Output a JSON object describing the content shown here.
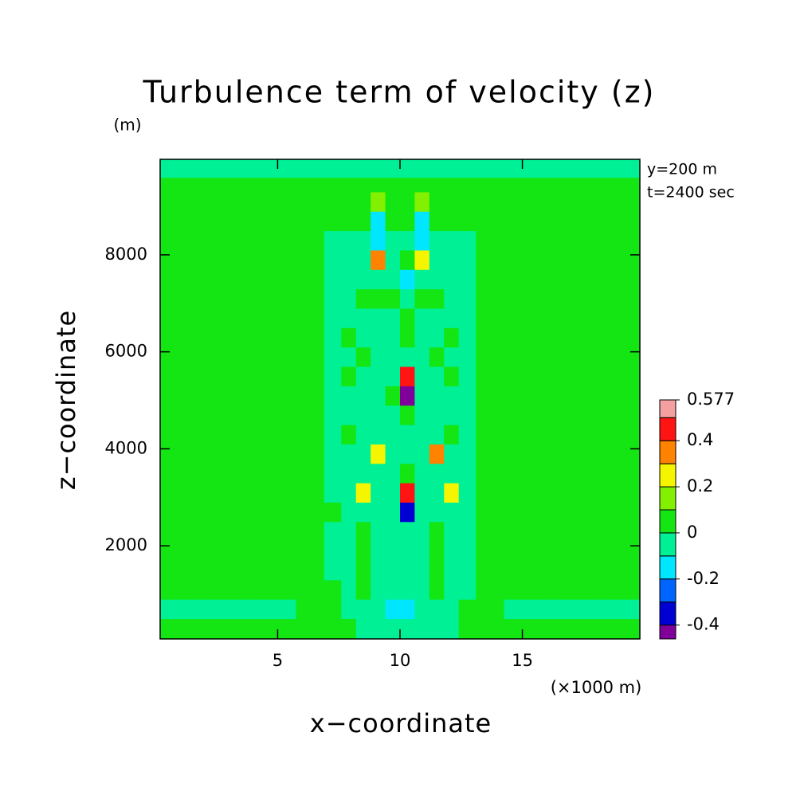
{
  "chart_data": {
    "type": "contour",
    "title": "Turbulence term of velocity (z)",
    "y_unit": "(m)",
    "x_unit": "(×1000 m)",
    "xlabel": "x−coordinate",
    "ylabel": "z−coordinate",
    "annotations": [
      "y=200 m",
      "t=2400 sec"
    ],
    "xlim": [
      0.2,
      19.8
    ],
    "ylim": [
      80,
      9970
    ],
    "xticks": [
      5,
      10,
      15
    ],
    "yticks": [
      2000,
      4000,
      6000,
      8000
    ],
    "x": [
      1,
      3,
      5,
      6.5,
      7.3,
      7.9,
      8.5,
      9.1,
      9.7,
      10.3,
      10.9,
      11.5,
      12.1,
      12.7,
      13.5,
      15,
      17,
      19
    ],
    "z": [
      300,
      700,
      1100,
      1500,
      1900,
      2300,
      2700,
      3100,
      3500,
      3900,
      4300,
      4700,
      5100,
      5500,
      5900,
      6300,
      6700,
      7100,
      7500,
      7900,
      8300,
      8700,
      9100,
      9500,
      9700
    ],
    "values": [
      [
        0.03,
        0.03,
        0.03,
        0.03,
        0.03,
        0.03,
        -0.03,
        -0.03,
        -0.03,
        -0.03,
        -0.03,
        -0.03,
        -0.03,
        0.03,
        0.03,
        0.03,
        0.03,
        0.03
      ],
      [
        -0.03,
        -0.03,
        -0.03,
        0.03,
        0.03,
        -0.03,
        -0.03,
        -0.03,
        -0.12,
        -0.12,
        -0.03,
        -0.03,
        -0.03,
        0.03,
        0.03,
        -0.03,
        -0.03,
        -0.03
      ],
      [
        0.03,
        0.03,
        0.03,
        0.03,
        0.03,
        -0.03,
        0.03,
        -0.03,
        -0.03,
        -0.03,
        -0.03,
        0.03,
        -0.03,
        -0.03,
        0.03,
        0.03,
        0.03,
        0.03
      ],
      [
        0.03,
        0.03,
        0.03,
        0.03,
        -0.03,
        -0.03,
        0.03,
        -0.03,
        -0.03,
        -0.03,
        -0.03,
        0.03,
        -0.03,
        -0.03,
        0.03,
        0.03,
        0.03,
        0.03
      ],
      [
        0.03,
        0.03,
        0.03,
        0.03,
        -0.03,
        -0.03,
        0.03,
        -0.03,
        -0.03,
        -0.03,
        -0.03,
        0.03,
        -0.03,
        -0.03,
        0.03,
        0.03,
        0.03,
        0.03
      ],
      [
        0.03,
        0.03,
        0.03,
        0.03,
        -0.03,
        -0.03,
        0.03,
        -0.03,
        -0.03,
        -0.03,
        -0.03,
        0.03,
        -0.03,
        -0.03,
        0.03,
        0.03,
        0.03,
        0.03
      ],
      [
        0.03,
        0.03,
        0.03,
        0.03,
        0.03,
        -0.03,
        -0.03,
        -0.03,
        -0.03,
        -0.36,
        -0.03,
        -0.03,
        -0.03,
        -0.03,
        0.03,
        0.03,
        0.03,
        0.03
      ],
      [
        0.03,
        0.03,
        0.03,
        0.03,
        -0.03,
        -0.03,
        0.22,
        -0.03,
        -0.03,
        0.47,
        -0.03,
        -0.03,
        0.24,
        -0.03,
        0.03,
        0.03,
        0.03,
        0.03
      ],
      [
        0.03,
        0.03,
        0.03,
        0.03,
        -0.03,
        -0.03,
        -0.03,
        -0.03,
        -0.03,
        0.03,
        -0.03,
        -0.03,
        -0.03,
        -0.03,
        0.03,
        0.03,
        0.03,
        0.03
      ],
      [
        0.03,
        0.03,
        0.03,
        0.03,
        -0.03,
        -0.03,
        -0.03,
        0.23,
        -0.03,
        -0.03,
        -0.03,
        0.33,
        -0.03,
        -0.03,
        0.03,
        0.03,
        0.03,
        0.03
      ],
      [
        0.03,
        0.03,
        0.03,
        0.03,
        -0.03,
        0.03,
        -0.03,
        -0.03,
        -0.03,
        -0.03,
        -0.03,
        -0.03,
        0.03,
        -0.03,
        0.03,
        0.03,
        0.03,
        0.03
      ],
      [
        0.03,
        0.03,
        0.03,
        0.03,
        -0.03,
        -0.03,
        -0.03,
        -0.03,
        -0.03,
        0.03,
        -0.03,
        -0.03,
        -0.03,
        -0.03,
        0.03,
        0.03,
        0.03,
        0.03
      ],
      [
        0.03,
        0.03,
        0.03,
        0.03,
        -0.03,
        -0.03,
        -0.03,
        -0.03,
        0.03,
        -0.42,
        -0.03,
        -0.03,
        -0.03,
        -0.03,
        0.03,
        0.03,
        0.03,
        0.03
      ],
      [
        0.03,
        0.03,
        0.03,
        0.03,
        -0.03,
        0.03,
        -0.03,
        -0.03,
        -0.03,
        0.46,
        -0.03,
        -0.03,
        0.03,
        -0.03,
        0.03,
        0.03,
        0.03,
        0.03
      ],
      [
        0.03,
        0.03,
        0.03,
        0.03,
        -0.03,
        -0.03,
        0.03,
        -0.03,
        -0.03,
        -0.03,
        -0.03,
        0.03,
        -0.03,
        -0.03,
        0.03,
        0.03,
        0.03,
        0.03
      ],
      [
        0.03,
        0.03,
        0.03,
        0.03,
        -0.03,
        0.03,
        -0.03,
        -0.03,
        -0.03,
        0.03,
        -0.03,
        -0.03,
        0.03,
        -0.03,
        0.03,
        0.03,
        0.03,
        0.03
      ],
      [
        0.03,
        0.03,
        0.03,
        0.03,
        -0.03,
        -0.03,
        -0.03,
        -0.03,
        -0.03,
        0.03,
        -0.03,
        -0.03,
        -0.03,
        -0.03,
        0.03,
        0.03,
        0.03,
        0.03
      ],
      [
        0.03,
        0.03,
        0.03,
        0.03,
        -0.03,
        -0.03,
        0.03,
        0.03,
        0.03,
        -0.03,
        0.03,
        0.03,
        -0.03,
        -0.03,
        0.03,
        0.03,
        0.03,
        0.03
      ],
      [
        0.03,
        0.03,
        0.03,
        0.03,
        -0.03,
        -0.03,
        -0.03,
        -0.03,
        -0.03,
        -0.12,
        -0.03,
        -0.03,
        -0.03,
        -0.03,
        0.03,
        0.03,
        0.03,
        0.03
      ],
      [
        0.03,
        0.03,
        0.03,
        0.03,
        -0.03,
        -0.03,
        -0.03,
        0.35,
        -0.03,
        0.03,
        0.25,
        -0.03,
        -0.03,
        -0.03,
        0.03,
        0.03,
        0.03,
        0.03
      ],
      [
        0.03,
        0.03,
        0.03,
        0.03,
        -0.03,
        -0.03,
        -0.03,
        -0.13,
        -0.03,
        -0.03,
        -0.13,
        -0.03,
        -0.03,
        -0.03,
        0.03,
        0.03,
        0.03,
        0.03
      ],
      [
        0.03,
        0.03,
        0.03,
        0.03,
        0.03,
        0.03,
        0.03,
        -0.15,
        0.03,
        0.03,
        -0.15,
        0.03,
        0.03,
        0.03,
        0.03,
        0.03,
        0.03,
        0.03
      ],
      [
        0.03,
        0.03,
        0.03,
        0.03,
        0.03,
        0.03,
        0.03,
        0.12,
        0.03,
        0.03,
        0.12,
        0.03,
        0.03,
        0.03,
        0.03,
        0.03,
        0.03,
        0.03
      ],
      [
        0.03,
        0.03,
        0.03,
        0.03,
        0.03,
        0.03,
        0.03,
        0.03,
        0.03,
        0.03,
        0.03,
        0.03,
        0.03,
        0.03,
        0.03,
        0.03,
        0.03,
        0.03
      ],
      [
        -0.03,
        -0.03,
        -0.03,
        -0.03,
        -0.03,
        -0.03,
        -0.03,
        -0.03,
        -0.03,
        -0.03,
        -0.03,
        -0.03,
        -0.03,
        -0.03,
        -0.03,
        -0.03,
        -0.03,
        -0.03
      ]
    ],
    "levels": [
      -0.4,
      -0.3,
      -0.2,
      -0.1,
      0,
      0.1,
      0.2,
      0.3,
      0.4,
      0.5
    ],
    "colors": [
      "#80009a",
      "#0000d2",
      "#0064ff",
      "#00e6ff",
      "#00f096",
      "#14e614",
      "#82f000",
      "#f5f500",
      "#ff8200",
      "#ff1414",
      "#f5a0a0"
    ],
    "clim": [
      -0.46,
      0.577
    ],
    "cticks": [
      0.577,
      0.4,
      0.2,
      0,
      -0.2,
      -0.4
    ]
  }
}
